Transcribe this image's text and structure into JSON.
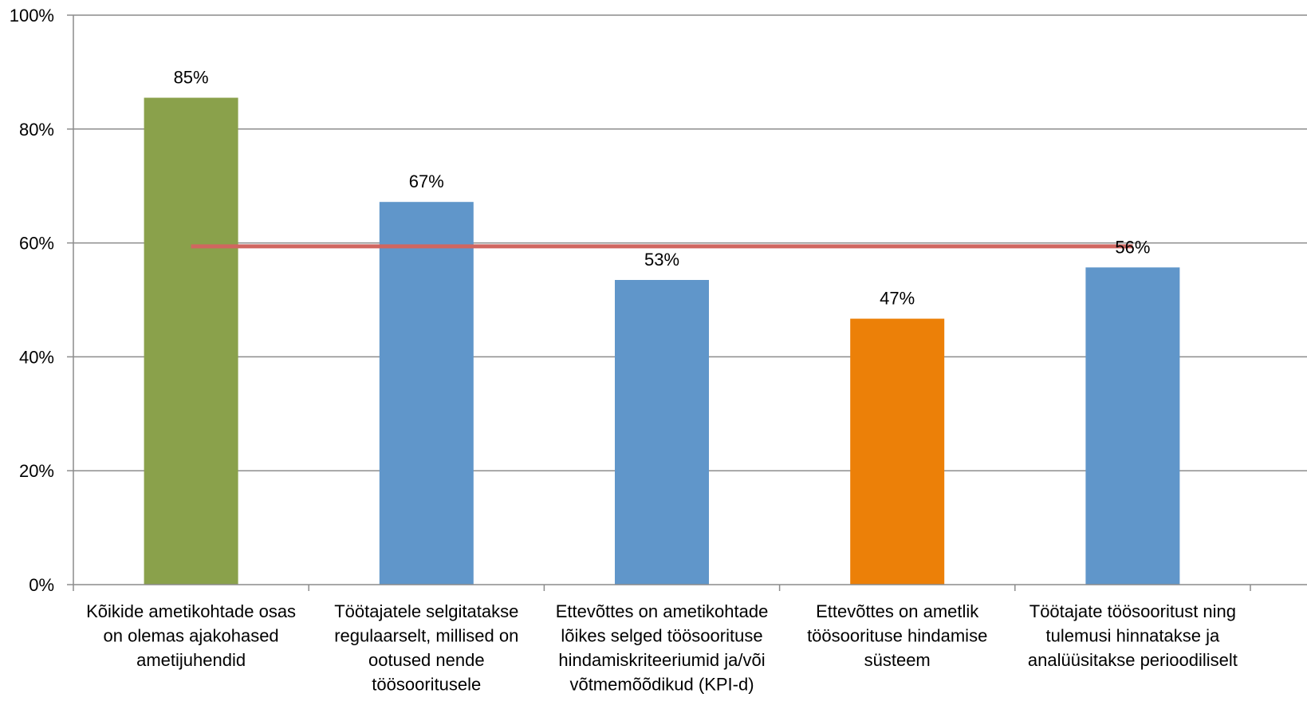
{
  "chart_data": {
    "type": "bar",
    "title": "",
    "xlabel": "",
    "ylabel": "",
    "ylim": [
      0,
      1
    ],
    "y_ticks": [
      "0%",
      "20%",
      "40%",
      "60%",
      "80%",
      "100%"
    ],
    "grid": true,
    "categories": [
      "Kõikide ametikohtade osas on olemas ajakohased ametijuhendid",
      "Töötajatele selgitatakse regulaarselt, millised on ootused nende töösooritusele",
      "Ettevõttes on ametikohtade lõikes selged töösoorituse hindamiskriteeriumid ja/või võtmemõõdikud (KPI-d)",
      "Ettevõttes on ametlik töösoorituse hindamise süsteem",
      "Töötajate töösooritust ning tulemusi hinnatakse ja analüüsitakse perioodiliselt"
    ],
    "category_lines": [
      [
        "Kõikide ametikohtade osas",
        "on olemas ajakohased",
        "ametijuhendid"
      ],
      [
        "Töötajatele selgitatakse",
        "regulaarselt, millised on",
        "ootused nende",
        "töösooritusele"
      ],
      [
        "Ettevõttes on ametikohtade",
        "lõikes selged töösoorituse",
        "hindamiskriteeriumid ja/või",
        "võtmemõõdikud (KPI-d)"
      ],
      [
        "Ettevõttes on ametlik",
        "töösoorituse hindamise",
        "süsteem"
      ],
      [
        "Töötajate töösooritust ning",
        "tulemusi hinnatakse ja",
        "analüüsitakse perioodiliselt"
      ]
    ],
    "series": [
      {
        "values": [
          0.855,
          0.672,
          0.535,
          0.467,
          0.557
        ],
        "labels": [
          "85%",
          "67%",
          "53%",
          "47%",
          "56%"
        ],
        "colors": [
          "#8aa14b",
          "#6096ca",
          "#6096ca",
          "#ec8008",
          "#6096ca"
        ]
      }
    ],
    "average_line": {
      "value": 0.594,
      "color": "#d06660"
    }
  }
}
